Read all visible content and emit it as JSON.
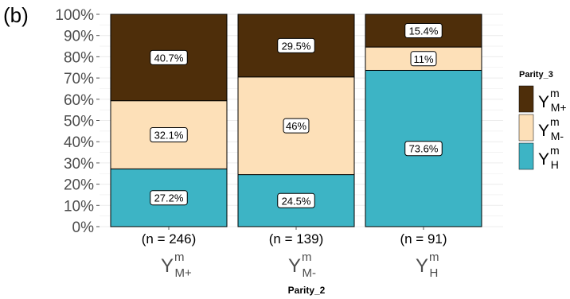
{
  "panel_label": "(b)",
  "chart_data": {
    "type": "bar",
    "stacked": true,
    "percent": true,
    "xlabel": "Parity_2",
    "ylabel": "",
    "ylim": [
      0,
      100
    ],
    "y_ticks": [
      "0%",
      "10%",
      "20%",
      "30%",
      "40%",
      "50%",
      "60%",
      "70%",
      "80%",
      "90%",
      "100%"
    ],
    "grid": true,
    "legend_position": "right",
    "legend_title": "Parity_3",
    "categories": [
      {
        "base": "Y",
        "sup": "m",
        "sub": "M+",
        "count": "(n = 246)"
      },
      {
        "base": "Y",
        "sup": "m",
        "sub": "M-",
        "count": "(n = 139)"
      },
      {
        "base": "Y",
        "sup": "m",
        "sub": "H",
        "count": "(n = 91)"
      }
    ],
    "series": [
      {
        "name": "Y^m_H",
        "legend": {
          "base": "Y",
          "sup": "m",
          "sub": "H"
        },
        "color": "#3db4c5",
        "values": [
          27.2,
          24.5,
          73.6
        ],
        "labels": [
          "27.2%",
          "24.5%",
          "73.6%"
        ]
      },
      {
        "name": "Y^m_M-",
        "legend": {
          "base": "Y",
          "sup": "m",
          "sub": "M-"
        },
        "color": "#fde0b8",
        "values": [
          32.1,
          46.0,
          11.0
        ],
        "labels": [
          "32.1%",
          "46%",
          "11%"
        ]
      },
      {
        "name": "Y^m_M+",
        "legend": {
          "base": "Y",
          "sup": "m",
          "sub": "M+"
        },
        "color": "#4e2e0a",
        "values": [
          40.7,
          29.5,
          15.4
        ],
        "labels": [
          "40.7%",
          "29.5%",
          "15.4%"
        ]
      }
    ],
    "legend_order": [
      2,
      1,
      0
    ]
  }
}
